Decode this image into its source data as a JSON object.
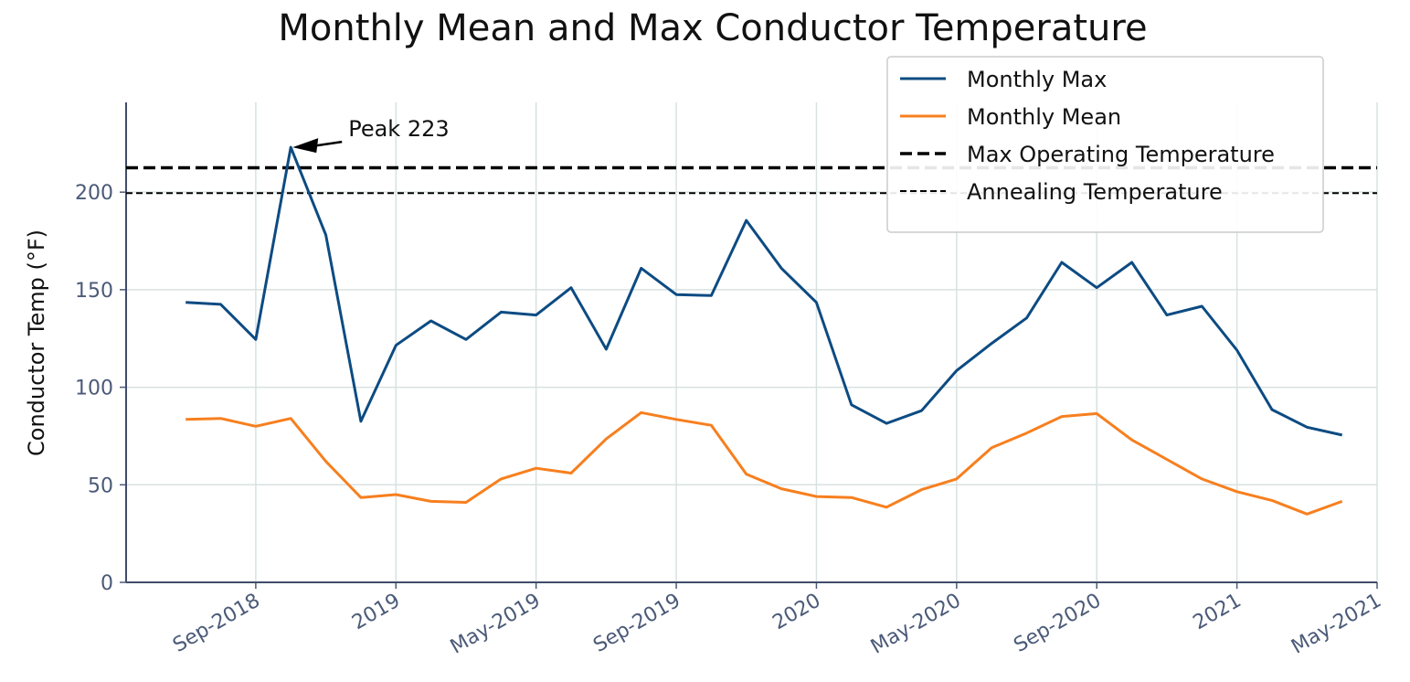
{
  "chart_data": {
    "type": "line",
    "title": "Monthly Mean and Max Conductor Temperature",
    "ylabel": "Conductor Temp (°F)",
    "x": [
      "2018-07",
      "2018-08",
      "2018-09",
      "2018-10",
      "2018-11",
      "2018-12",
      "2019-01",
      "2019-02",
      "2019-03",
      "2019-04",
      "2019-05",
      "2019-06",
      "2019-07",
      "2019-08",
      "2019-09",
      "2019-10",
      "2019-11",
      "2019-12",
      "2020-01",
      "2020-02",
      "2020-03",
      "2020-04",
      "2020-05",
      "2020-06",
      "2020-07",
      "2020-08",
      "2020-09",
      "2020-10",
      "2020-11",
      "2020-12",
      "2021-01",
      "2021-02",
      "2021-03",
      "2021-04"
    ],
    "series": [
      {
        "name": "Monthly Max",
        "color": "#0d4b82",
        "values": [
          143.5,
          142.5,
          124.5,
          223,
          178,
          82.5,
          121.5,
          134,
          124.5,
          138.5,
          137,
          151,
          119.5,
          161,
          147.5,
          147,
          185.5,
          161,
          143.5,
          91,
          81.5,
          88,
          108.5,
          122.5,
          135.5,
          164,
          151,
          164,
          137,
          141.5,
          119,
          88.5,
          79.5,
          75.5
        ]
      },
      {
        "name": "Monthly Mean",
        "color": "#f77f1e",
        "values": [
          83.5,
          84,
          80,
          84,
          62,
          43.5,
          45,
          41.5,
          41,
          53,
          58.5,
          56,
          73.5,
          87,
          83.5,
          80.5,
          55.5,
          48,
          44,
          43.5,
          38.5,
          47.5,
          53,
          69,
          76.5,
          85,
          86.5,
          73,
          63,
          53,
          46.5,
          42,
          35,
          41.5
        ]
      }
    ],
    "reference_lines": [
      {
        "name": "Max Operating Temperature",
        "value": 212.5,
        "color": "#000000",
        "style": "thick-dashed"
      },
      {
        "name": "Annealing Temperature",
        "value": 199.5,
        "color": "#000000",
        "style": "thin-dashed"
      }
    ],
    "annotations": [
      {
        "text": "Peak 223",
        "x": "2018-10",
        "y": 223
      }
    ],
    "xlim": [
      "2018-05-10",
      "2021-05-01"
    ],
    "xticks": [
      {
        "value": "2018-09",
        "label": "Sep-2018"
      },
      {
        "value": "2019-01",
        "label": "2019"
      },
      {
        "value": "2019-05",
        "label": "May-2019"
      },
      {
        "value": "2019-09",
        "label": "Sep-2019"
      },
      {
        "value": "2020-01",
        "label": "2020"
      },
      {
        "value": "2020-05",
        "label": "May-2020"
      },
      {
        "value": "2020-09",
        "label": "Sep-2020"
      },
      {
        "value": "2021-01",
        "label": "2021"
      },
      {
        "value": "2021-05",
        "label": "May-2021"
      }
    ],
    "ylim": [
      0,
      246
    ],
    "yticks": [
      0,
      50,
      100,
      150,
      200
    ],
    "grid": true,
    "legend": "upper right"
  }
}
